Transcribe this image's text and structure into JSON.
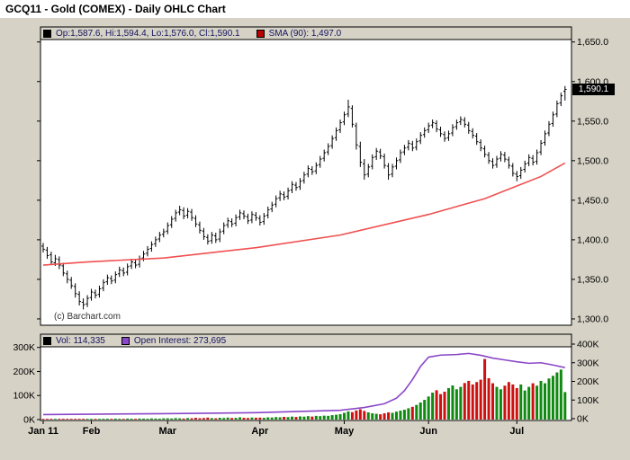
{
  "title": "GCQ11 - Gold (COMEX) - Daily OHLC Chart",
  "legend": {
    "ohlc": "Op:1,587.6, Hi:1,594.4, Lo:1,576.0, Cl:1,590.1",
    "sma": "SMA (90): 1,497.0",
    "volume": "Vol: 114,335",
    "open_interest": "Open Interest: 273,695"
  },
  "copyright": "(c) Barchart.com",
  "last_price_label": "1,590.1",
  "colors": {
    "page_bg": "#d6d2c6",
    "plot_bg": "#ffffff",
    "bar": "#000000",
    "sma_line": "#f05050",
    "sma_swatch": "#bb0000",
    "vol_up": "#118a11",
    "vol_down": "#cc1111",
    "oi_line": "#8a46c8",
    "flag_bg": "#000000",
    "flag_text": "#ffffff",
    "axis_text": "#000000",
    "legend_text": "#14145e"
  },
  "chart_data": {
    "type": "ohlc+volume",
    "title": "GCQ11 - Gold (COMEX) - Daily OHLC Chart",
    "symbol": "GCQ11",
    "last_price": 1590.1,
    "sma_period": 90,
    "sma_last": 1497.0,
    "last_volume": 114335,
    "last_open_interest": 273695,
    "price_axis": {
      "side": "right",
      "range": [
        1292,
        1669
      ],
      "ticks": [
        {
          "v": 1650,
          "label": "1,650.0"
        },
        {
          "v": 1600,
          "label": "1,600.0"
        },
        {
          "v": 1550,
          "label": "1,550.0"
        },
        {
          "v": 1500,
          "label": "1,500.0"
        },
        {
          "v": 1450,
          "label": "1,450.0"
        },
        {
          "v": 1400,
          "label": "1,400.0"
        },
        {
          "v": 1350,
          "label": "1,350.0"
        },
        {
          "v": 1300,
          "label": "1,300.0"
        }
      ]
    },
    "volume_axis_left": {
      "ticks": [
        {
          "v": 300000,
          "label": "300K"
        },
        {
          "v": 200000,
          "label": "200K"
        },
        {
          "v": 100000,
          "label": "100K"
        },
        {
          "v": 0,
          "label": "0K"
        }
      ]
    },
    "oi_axis_right": {
      "ticks": [
        {
          "v": 400000,
          "label": "400K"
        },
        {
          "v": 300000,
          "label": "300K"
        },
        {
          "v": 200000,
          "label": "200K"
        },
        {
          "v": 100000,
          "label": "100K"
        },
        {
          "v": 0,
          "label": "0K"
        }
      ]
    },
    "months": [
      {
        "label": "Jan 11",
        "index": 0
      },
      {
        "label": "Feb",
        "index": 12
      },
      {
        "label": "Mar",
        "index": 31
      },
      {
        "label": "Apr",
        "index": 54
      },
      {
        "label": "May",
        "index": 75
      },
      {
        "label": "Jun",
        "index": 96
      },
      {
        "label": "Jul",
        "index": 118
      }
    ],
    "bars": [
      [
        1392,
        1396,
        1384,
        1388
      ],
      [
        1387,
        1391,
        1376,
        1380
      ],
      [
        1381,
        1385,
        1368,
        1372
      ],
      [
        1371,
        1381,
        1367,
        1376
      ],
      [
        1375,
        1379,
        1363,
        1368
      ],
      [
        1367,
        1371,
        1354,
        1358
      ],
      [
        1357,
        1361,
        1345,
        1350
      ],
      [
        1349,
        1353,
        1338,
        1342
      ],
      [
        1341,
        1345,
        1327,
        1332
      ],
      [
        1331,
        1335,
        1317,
        1322
      ],
      [
        1321,
        1326,
        1312,
        1318
      ],
      [
        1319,
        1330,
        1315,
        1326
      ],
      [
        1327,
        1338,
        1323,
        1334
      ],
      [
        1333,
        1337,
        1326,
        1330
      ],
      [
        1331,
        1342,
        1327,
        1338
      ],
      [
        1339,
        1350,
        1335,
        1346
      ],
      [
        1347,
        1356,
        1343,
        1352
      ],
      [
        1351,
        1355,
        1344,
        1348
      ],
      [
        1349,
        1360,
        1345,
        1356
      ],
      [
        1357,
        1366,
        1353,
        1362
      ],
      [
        1361,
        1365,
        1354,
        1358
      ],
      [
        1359,
        1370,
        1355,
        1366
      ],
      [
        1367,
        1376,
        1363,
        1372
      ],
      [
        1371,
        1375,
        1364,
        1368
      ],
      [
        1369,
        1380,
        1365,
        1376
      ],
      [
        1377,
        1386,
        1373,
        1382
      ],
      [
        1383,
        1392,
        1379,
        1388
      ],
      [
        1389,
        1398,
        1385,
        1394
      ],
      [
        1395,
        1404,
        1391,
        1400
      ],
      [
        1401,
        1410,
        1397,
        1406
      ],
      [
        1407,
        1414,
        1403,
        1410
      ],
      [
        1411,
        1422,
        1407,
        1418
      ],
      [
        1419,
        1430,
        1415,
        1426
      ],
      [
        1427,
        1438,
        1423,
        1434
      ],
      [
        1435,
        1443,
        1431,
        1438
      ],
      [
        1437,
        1441,
        1426,
        1430
      ],
      [
        1431,
        1440,
        1427,
        1436
      ],
      [
        1435,
        1439,
        1424,
        1428
      ],
      [
        1427,
        1431,
        1416,
        1420
      ],
      [
        1419,
        1423,
        1408,
        1412
      ],
      [
        1411,
        1415,
        1400,
        1404
      ],
      [
        1403,
        1407,
        1394,
        1398
      ],
      [
        1399,
        1410,
        1395,
        1406
      ],
      [
        1405,
        1409,
        1396,
        1400
      ],
      [
        1401,
        1414,
        1397,
        1410
      ],
      [
        1411,
        1422,
        1407,
        1418
      ],
      [
        1419,
        1428,
        1415,
        1424
      ],
      [
        1423,
        1427,
        1416,
        1420
      ],
      [
        1421,
        1432,
        1417,
        1428
      ],
      [
        1429,
        1438,
        1425,
        1434
      ],
      [
        1433,
        1437,
        1426,
        1430
      ],
      [
        1429,
        1433,
        1420,
        1424
      ],
      [
        1425,
        1436,
        1421,
        1432
      ],
      [
        1431,
        1435,
        1424,
        1428
      ],
      [
        1427,
        1431,
        1418,
        1422
      ],
      [
        1423,
        1434,
        1419,
        1430
      ],
      [
        1431,
        1442,
        1427,
        1438
      ],
      [
        1439,
        1448,
        1435,
        1444
      ],
      [
        1445,
        1456,
        1441,
        1452
      ],
      [
        1453,
        1462,
        1449,
        1458
      ],
      [
        1457,
        1461,
        1450,
        1454
      ],
      [
        1455,
        1466,
        1451,
        1462
      ],
      [
        1463,
        1474,
        1459,
        1470
      ],
      [
        1469,
        1473,
        1462,
        1466
      ],
      [
        1467,
        1478,
        1463,
        1474
      ],
      [
        1475,
        1486,
        1471,
        1482
      ],
      [
        1483,
        1494,
        1479,
        1490
      ],
      [
        1489,
        1493,
        1482,
        1486
      ],
      [
        1487,
        1498,
        1483,
        1494
      ],
      [
        1495,
        1506,
        1491,
        1502
      ],
      [
        1503,
        1514,
        1499,
        1510
      ],
      [
        1511,
        1522,
        1507,
        1518
      ],
      [
        1519,
        1532,
        1515,
        1528
      ],
      [
        1529,
        1542,
        1525,
        1538
      ],
      [
        1539,
        1552,
        1535,
        1548
      ],
      [
        1549,
        1562,
        1545,
        1558
      ],
      [
        1559,
        1577,
        1555,
        1568
      ],
      [
        1566,
        1570,
        1542,
        1546
      ],
      [
        1544,
        1548,
        1514,
        1520
      ],
      [
        1518,
        1524,
        1492,
        1498
      ],
      [
        1496,
        1502,
        1476,
        1482
      ],
      [
        1483,
        1496,
        1479,
        1492
      ],
      [
        1493,
        1508,
        1489,
        1504
      ],
      [
        1505,
        1516,
        1501,
        1512
      ],
      [
        1511,
        1515,
        1502,
        1506
      ],
      [
        1505,
        1509,
        1490,
        1494
      ],
      [
        1493,
        1497,
        1476,
        1482
      ],
      [
        1483,
        1496,
        1479,
        1492
      ],
      [
        1493,
        1504,
        1489,
        1500
      ],
      [
        1501,
        1514,
        1497,
        1510
      ],
      [
        1511,
        1520,
        1507,
        1516
      ],
      [
        1517,
        1526,
        1513,
        1522
      ],
      [
        1521,
        1525,
        1512,
        1516
      ],
      [
        1517,
        1528,
        1513,
        1524
      ],
      [
        1525,
        1536,
        1521,
        1532
      ],
      [
        1533,
        1542,
        1529,
        1538
      ],
      [
        1539,
        1548,
        1535,
        1544
      ],
      [
        1545,
        1552,
        1541,
        1548
      ],
      [
        1547,
        1551,
        1536,
        1540
      ],
      [
        1539,
        1543,
        1530,
        1534
      ],
      [
        1533,
        1537,
        1524,
        1528
      ],
      [
        1529,
        1538,
        1525,
        1534
      ],
      [
        1535,
        1546,
        1531,
        1542
      ],
      [
        1543,
        1552,
        1539,
        1548
      ],
      [
        1549,
        1556,
        1545,
        1552
      ],
      [
        1551,
        1555,
        1542,
        1546
      ],
      [
        1545,
        1549,
        1534,
        1538
      ],
      [
        1537,
        1541,
        1528,
        1532
      ],
      [
        1531,
        1535,
        1520,
        1524
      ],
      [
        1523,
        1527,
        1512,
        1516
      ],
      [
        1515,
        1519,
        1504,
        1508
      ],
      [
        1507,
        1511,
        1496,
        1500
      ],
      [
        1499,
        1503,
        1490,
        1494
      ],
      [
        1495,
        1506,
        1491,
        1502
      ],
      [
        1503,
        1512,
        1499,
        1508
      ],
      [
        1507,
        1511,
        1498,
        1502
      ],
      [
        1501,
        1505,
        1490,
        1494
      ],
      [
        1493,
        1497,
        1480,
        1484
      ],
      [
        1483,
        1487,
        1474,
        1480
      ],
      [
        1481,
        1492,
        1477,
        1488
      ],
      [
        1489,
        1500,
        1485,
        1496
      ],
      [
        1497,
        1508,
        1493,
        1504
      ],
      [
        1503,
        1507,
        1494,
        1498
      ],
      [
        1499,
        1514,
        1495,
        1510
      ],
      [
        1511,
        1526,
        1507,
        1522
      ],
      [
        1523,
        1538,
        1519,
        1534
      ],
      [
        1535,
        1550,
        1531,
        1546
      ],
      [
        1547,
        1562,
        1543,
        1558
      ],
      [
        1559,
        1576,
        1555,
        1572
      ],
      [
        1573,
        1586,
        1569,
        1582
      ],
      [
        1587.6,
        1594.4,
        1576,
        1590.1
      ]
    ],
    "sma90_points": [
      [
        0,
        1368
      ],
      [
        11,
        1372
      ],
      [
        30,
        1377
      ],
      [
        53,
        1390
      ],
      [
        74,
        1406
      ],
      [
        96,
        1432
      ],
      [
        110,
        1452
      ],
      [
        118,
        1468
      ],
      [
        124,
        1480
      ],
      [
        130,
        1497
      ]
    ],
    "volume": [
      2500,
      2100,
      1800,
      2200,
      2600,
      3100,
      2400,
      2000,
      2800,
      2300,
      2100,
      2400,
      2600,
      3000,
      2400,
      3200,
      3400,
      2700,
      3900,
      3300,
      2900,
      4100,
      3500,
      3100,
      4300,
      3900,
      3400,
      4800,
      4200,
      3800,
      5100,
      5400,
      4600,
      6100,
      5200,
      4400,
      6300,
      5500,
      7200,
      5600,
      6400,
      8100,
      6200,
      5300,
      7400,
      6600,
      8300,
      6700,
      7100,
      9200,
      7300,
      6500,
      8400,
      7600,
      8200,
      7400,
      9300,
      8600,
      10400,
      9500,
      11200,
      10300,
      12400,
      10800,
      13100,
      12200,
      14300,
      12600,
      15400,
      14200,
      16300,
      15500,
      18400,
      20200,
      22400,
      28000,
      34000,
      31000,
      38000,
      43000,
      36000,
      30000,
      26000,
      24000,
      22000,
      26000,
      30000,
      28000,
      33000,
      37000,
      41000,
      47000,
      53000,
      61000,
      71000,
      82000,
      96000,
      112000,
      122000,
      106000,
      116000,
      131000,
      142000,
      126000,
      136000,
      152000,
      161000,
      146000,
      156000,
      166000,
      252000,
      172000,
      151000,
      136000,
      126000,
      141000,
      156000,
      146000,
      131000,
      146000,
      121000,
      136000,
      151000,
      141000,
      161000,
      151000,
      171000,
      182000,
      196000,
      208000,
      114335
    ],
    "open_interest_points": [
      [
        0,
        22000
      ],
      [
        11,
        24000
      ],
      [
        30,
        27000
      ],
      [
        53,
        32000
      ],
      [
        74,
        45000
      ],
      [
        80,
        60000
      ],
      [
        85,
        80000
      ],
      [
        88,
        110000
      ],
      [
        90,
        150000
      ],
      [
        92,
        210000
      ],
      [
        94,
        280000
      ],
      [
        96,
        330000
      ],
      [
        99,
        341000
      ],
      [
        103,
        344000
      ],
      [
        106,
        350000
      ],
      [
        109,
        340000
      ],
      [
        112,
        325000
      ],
      [
        115,
        315000
      ],
      [
        118,
        305000
      ],
      [
        121,
        297000
      ],
      [
        124,
        300000
      ],
      [
        127,
        288000
      ],
      [
        130,
        273695
      ]
    ]
  }
}
